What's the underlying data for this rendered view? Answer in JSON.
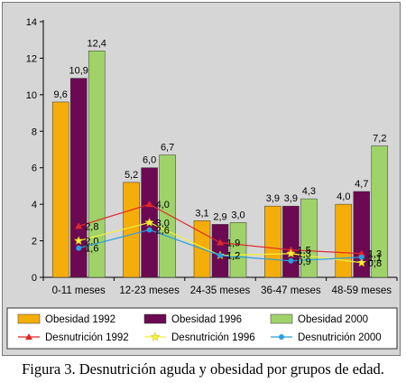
{
  "chart_data": {
    "type": "bar",
    "categories": [
      "0-11 meses",
      "12-23 meses",
      "24-35 meses",
      "36-47 meses",
      "48-59 meses"
    ],
    "ylim": [
      0,
      14
    ],
    "yticks": [
      0,
      2,
      4,
      6,
      8,
      10,
      12,
      14
    ],
    "grid": false,
    "legend_position": "bottom",
    "bar_series": [
      {
        "name": "Obesidad 1992",
        "values": [
          9.6,
          5.2,
          3.1,
          3.9,
          4.0
        ],
        "labels": [
          "9,6",
          "5,2",
          "3,1",
          "3,9",
          "4,0"
        ],
        "color": "#f5ad0a"
      },
      {
        "name": "Obesidad 1996",
        "values": [
          10.9,
          6.0,
          2.9,
          3.9,
          4.7
        ],
        "labels": [
          "10,9",
          "6,0",
          "2,9",
          "3,9",
          "4,7"
        ],
        "color": "#6b0a52"
      },
      {
        "name": "Obesidad 2000",
        "values": [
          12.4,
          6.7,
          3.0,
          4.3,
          7.2
        ],
        "labels": [
          "12,4",
          "6,7",
          "3,0",
          "4,3",
          "7,2"
        ],
        "color": "#9fd36a"
      }
    ],
    "line_series": [
      {
        "name": "Desnutrición 1992",
        "values": [
          2.8,
          4.0,
          1.9,
          1.5,
          1.3
        ],
        "labels": [
          "2,8",
          "4,0",
          "1,9",
          "1,5",
          "1,3"
        ],
        "color": "#e02828",
        "marker": "triangle"
      },
      {
        "name": "Desnutrición 1996",
        "values": [
          2.0,
          3.0,
          1.2,
          1.3,
          0.8
        ],
        "labels": [
          "2,0",
          "3,0",
          "1,2",
          "1,3",
          "0,8"
        ],
        "color": "#f4f13a",
        "marker": "star"
      },
      {
        "name": "Desnutrición 2000",
        "values": [
          1.6,
          2.6,
          1.2,
          0.9,
          1.1
        ],
        "labels": [
          "1,6",
          "2,6",
          "1,2",
          "0,9",
          "1,1"
        ],
        "color": "#2aa0dc",
        "marker": "circle"
      }
    ]
  },
  "caption": "Figura 3. Desnutrición aguda y obesidad por grupos de edad."
}
